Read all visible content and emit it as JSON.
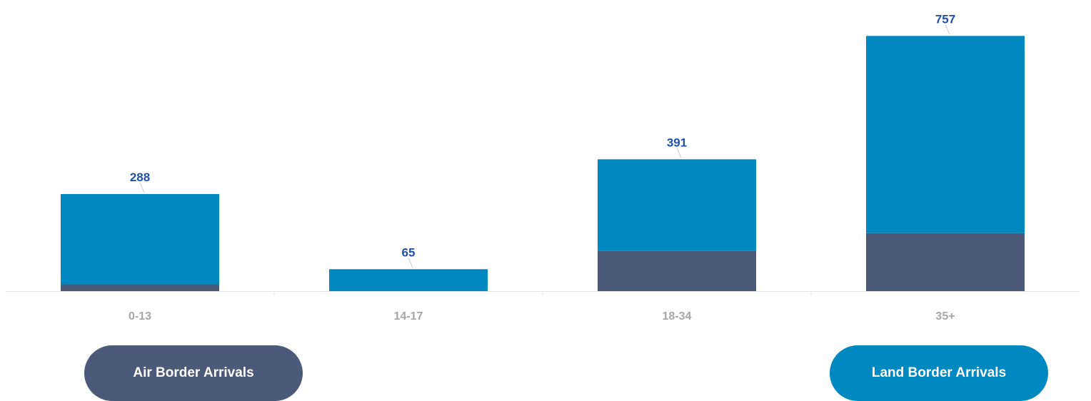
{
  "chart_data": {
    "type": "bar",
    "stacked": true,
    "categories": [
      "0-13",
      "14-17",
      "18-34",
      "35+"
    ],
    "series": [
      {
        "name": "Air Border Arrivals",
        "values": [
          20,
          0,
          120,
          172
        ],
        "color": "#4a5a78"
      },
      {
        "name": "Land Border Arrivals",
        "values": [
          268,
          65,
          271,
          585
        ],
        "color": "#0088c0"
      }
    ],
    "totals": [
      288,
      65,
      391,
      757
    ],
    "ylim": [
      0,
      800
    ],
    "grid": false,
    "legend_position": "bottom",
    "label_color": "#1f4fa8",
    "axis_label_color": "#a6a6a6"
  },
  "legend": {
    "air_label": "Air Border Arrivals",
    "land_label": "Land Border Arrivals"
  }
}
